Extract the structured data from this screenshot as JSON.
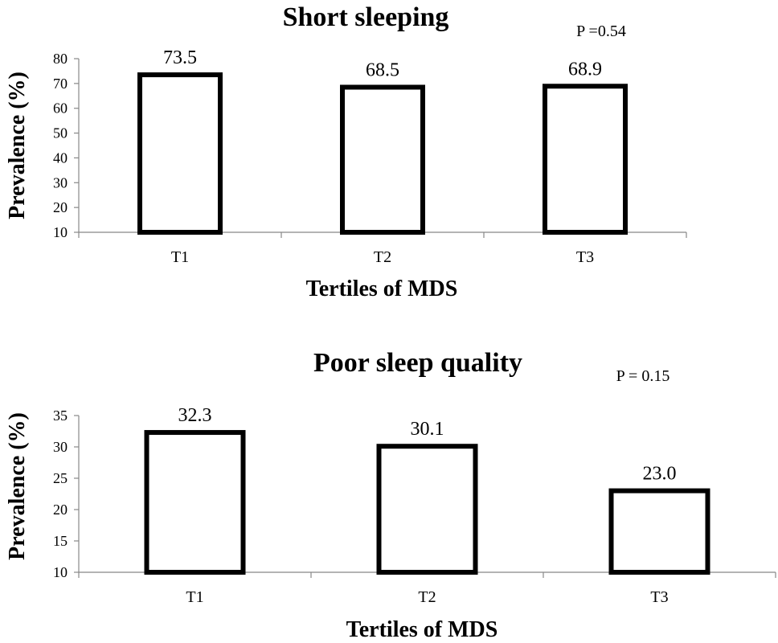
{
  "chart_data": [
    {
      "type": "bar",
      "title": "Short sleeping",
      "annotation": "P =0.54",
      "xlabel": "Tertiles of MDS",
      "ylabel": "Prevalence (%)",
      "categories": [
        "T1",
        "T2",
        "T3"
      ],
      "values": [
        73.5,
        68.5,
        68.9
      ],
      "value_labels": [
        "73.5",
        "68.5",
        "68.9"
      ],
      "ylim": [
        10,
        80
      ],
      "yticks": [
        10,
        20,
        30,
        40,
        50,
        60,
        70,
        80
      ],
      "grid": false
    },
    {
      "type": "bar",
      "title": "Poor sleep quality",
      "annotation": "P = 0.15",
      "xlabel": "Tertiles of MDS",
      "ylabel": "Prevalence (%)",
      "categories": [
        "T1",
        "T2",
        "T3"
      ],
      "values": [
        32.3,
        30.1,
        23.0
      ],
      "value_labels": [
        "32.3",
        "30.1",
        "23.0"
      ],
      "ylim": [
        10,
        35
      ],
      "yticks": [
        10,
        15,
        20,
        25,
        30,
        35
      ],
      "grid": false
    }
  ]
}
